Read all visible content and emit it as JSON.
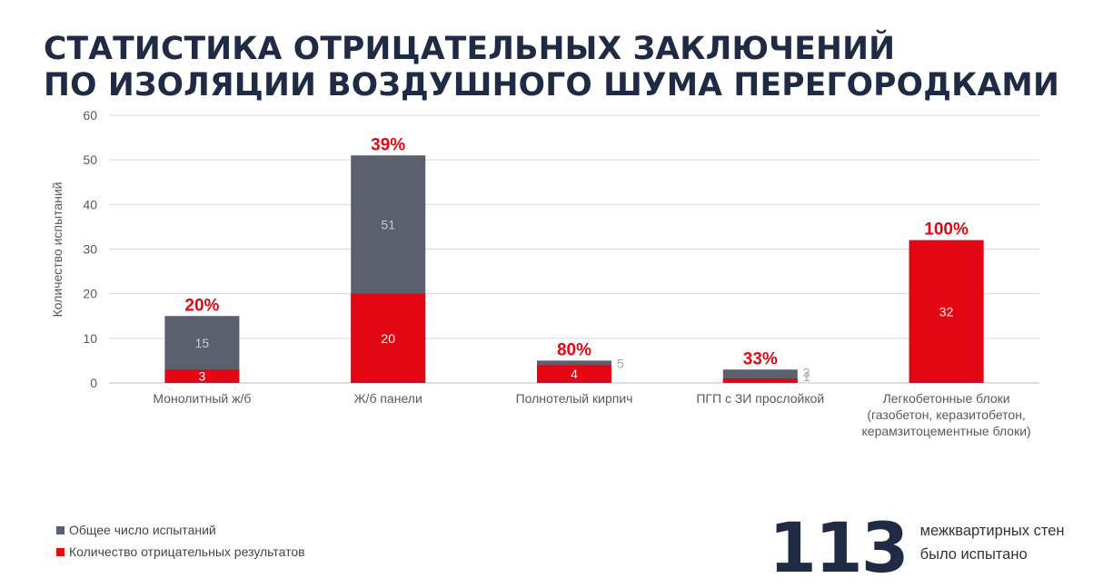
{
  "title": {
    "line1": "СТАТИСТИКА ОТРИЦАТЕЛЬНЫХ ЗАКЛЮЧЕНИЙ",
    "line2": "ПО ИЗОЛЯЦИИ ВОЗДУШНОГО ШУМА ПЕРЕГОРОДКАМИ"
  },
  "colors": {
    "total": "#5a606d",
    "negative": "#e30613",
    "percent": "#e30613",
    "axis_text": "#595959",
    "grid": "#d9d9d9",
    "title": "#1f2a44"
  },
  "legend": {
    "items": [
      {
        "label": "Общее число испытаний",
        "color": "#5a606d"
      },
      {
        "label": "Количество отрицательных результатов",
        "color": "#e30613"
      }
    ]
  },
  "summary": {
    "number": "113",
    "caption_line1": "межквартирных стен",
    "caption_line2": "было испытано"
  },
  "chart_data": {
    "type": "bar",
    "ylabel": "Количество испытаний",
    "xlabel": "",
    "ylim": [
      0,
      60
    ],
    "yticks": [
      0,
      10,
      20,
      30,
      40,
      50,
      60
    ],
    "grid": true,
    "legend_position": "bottom-left",
    "categories": [
      [
        "Монолитный ж/б"
      ],
      [
        "Ж/б панели"
      ],
      [
        "Полнотелый кирпич"
      ],
      [
        "ПГП с ЗИ прослойкой"
      ],
      [
        "Легкобетонные блоки",
        "(газобетон, керазитобетон,",
        "керамзитоцементные блоки)"
      ]
    ],
    "series": [
      {
        "name": "Общее число испытаний",
        "values": [
          15,
          51,
          5,
          3,
          32
        ]
      },
      {
        "name": "Количество отрицательных результатов",
        "values": [
          3,
          20,
          4,
          1,
          32
        ]
      }
    ],
    "total_labels": [
      "15",
      "51",
      "5",
      "3",
      ""
    ],
    "negative_labels": [
      "3",
      "20",
      "4",
      "1",
      "32"
    ],
    "percent_labels": [
      "20%",
      "39%",
      "80%",
      "33%",
      "100%"
    ]
  }
}
